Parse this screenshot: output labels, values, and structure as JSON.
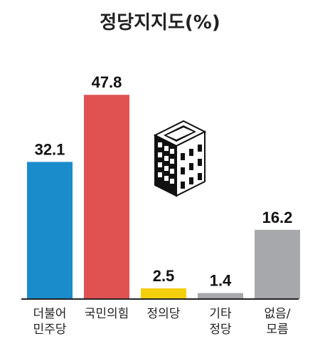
{
  "chart_data": {
    "type": "bar",
    "title": "정당지지도(%)",
    "xlabel": "",
    "ylabel": "",
    "ylim": [
      0,
      50
    ],
    "grid": false,
    "legend": "none",
    "categories": [
      [
        "더불어",
        "민주당"
      ],
      [
        "국민의힘"
      ],
      [
        "정의당"
      ],
      [
        "기타",
        "정당"
      ],
      [
        "없음/",
        "모름"
      ]
    ],
    "values": [
      32.1,
      47.8,
      2.5,
      1.4,
      16.2
    ],
    "value_labels": [
      "32.1",
      "47.8",
      "2.5",
      "1.4",
      "16.2"
    ],
    "colors": [
      "#1a8ccb",
      "#e05252",
      "#f4cf0b",
      "#a7a8ac",
      "#a7a8ac"
    ],
    "axis_color": "#222222"
  },
  "decoration": {
    "icon": "building-icon"
  }
}
